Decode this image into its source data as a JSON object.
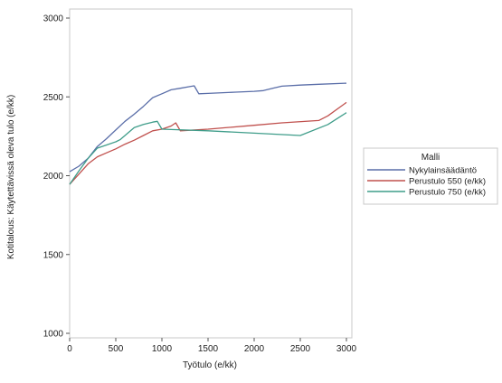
{
  "chart_data": {
    "type": "line",
    "title": "",
    "xlabel": "Työtulo (e/kk)",
    "ylabel": "Kotitalous: Käytettävissä oleva tulo (e/kk)",
    "xlim": [
      0,
      3000
    ],
    "ylim": [
      1000,
      3000
    ],
    "xticks": [
      0,
      500,
      1000,
      1500,
      2000,
      2500,
      3000
    ],
    "yticks": [
      1000,
      1500,
      2000,
      2500,
      3000
    ],
    "grid": false,
    "legend_title": "Malli",
    "legend_position": "right",
    "series": [
      {
        "name": "Nykylainsäädäntö",
        "color": "#5a6ea8",
        "points": [
          [
            0,
            2025
          ],
          [
            100,
            2060
          ],
          [
            200,
            2110
          ],
          [
            300,
            2185
          ],
          [
            400,
            2235
          ],
          [
            500,
            2290
          ],
          [
            600,
            2345
          ],
          [
            700,
            2390
          ],
          [
            800,
            2440
          ],
          [
            900,
            2495
          ],
          [
            1000,
            2520
          ],
          [
            1100,
            2545
          ],
          [
            1200,
            2555
          ],
          [
            1300,
            2565
          ],
          [
            1350,
            2570
          ],
          [
            1400,
            2520
          ],
          [
            1500,
            2522
          ],
          [
            1800,
            2530
          ],
          [
            2000,
            2535
          ],
          [
            2100,
            2540
          ],
          [
            2200,
            2555
          ],
          [
            2300,
            2568
          ],
          [
            2500,
            2575
          ],
          [
            2700,
            2580
          ],
          [
            3000,
            2587
          ]
        ]
      },
      {
        "name": "Perustulo 550 (e/kk)",
        "color": "#c0504d",
        "points": [
          [
            0,
            1945
          ],
          [
            100,
            2010
          ],
          [
            200,
            2075
          ],
          [
            300,
            2120
          ],
          [
            400,
            2145
          ],
          [
            500,
            2170
          ],
          [
            600,
            2200
          ],
          [
            700,
            2225
          ],
          [
            800,
            2255
          ],
          [
            900,
            2285
          ],
          [
            1000,
            2295
          ],
          [
            1100,
            2315
          ],
          [
            1150,
            2335
          ],
          [
            1200,
            2285
          ],
          [
            1500,
            2295
          ],
          [
            2000,
            2320
          ],
          [
            2300,
            2335
          ],
          [
            2700,
            2350
          ],
          [
            2800,
            2380
          ],
          [
            3000,
            2465
          ]
        ]
      },
      {
        "name": "Perustulo 750 (e/kk)",
        "color": "#3f9d8a",
        "points": [
          [
            0,
            1945
          ],
          [
            100,
            2030
          ],
          [
            200,
            2110
          ],
          [
            300,
            2175
          ],
          [
            400,
            2195
          ],
          [
            500,
            2215
          ],
          [
            550,
            2230
          ],
          [
            600,
            2255
          ],
          [
            700,
            2305
          ],
          [
            800,
            2325
          ],
          [
            900,
            2340
          ],
          [
            950,
            2345
          ],
          [
            1000,
            2295
          ],
          [
            1500,
            2285
          ],
          [
            2000,
            2270
          ],
          [
            2500,
            2255
          ],
          [
            2800,
            2325
          ],
          [
            3000,
            2400
          ]
        ]
      }
    ]
  }
}
